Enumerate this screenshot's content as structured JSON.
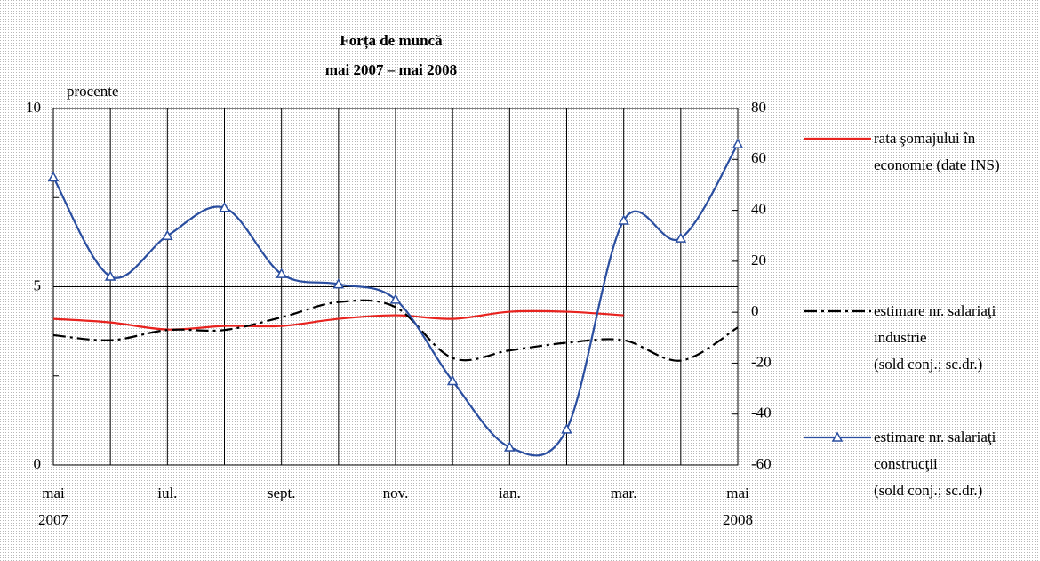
{
  "chart_data": {
    "type": "line",
    "title": "Forța de muncă",
    "subtitle": "mai 2007 – mai 2008",
    "y_label": "procente",
    "categories": [
      "mai\n2007",
      null,
      "iul.",
      null,
      "sept.",
      null,
      "nov.",
      null,
      "ian.",
      null,
      "mar.",
      null,
      "mai\n2008"
    ],
    "ylim": [
      0,
      10
    ],
    "yticks": [
      0,
      5,
      10
    ],
    "yminorticks": [
      2.5,
      7.5
    ],
    "y2lim": [
      -60,
      80
    ],
    "y2ticks": [
      -60,
      -40,
      -20,
      0,
      20,
      40,
      60,
      80
    ],
    "grid": true,
    "smooth": true,
    "series": [
      {
        "name": "rata şomajului în\neconomie (date INS)",
        "color": "#e8231f",
        "axis": "y",
        "style": "solid",
        "values": [
          4.1,
          4.0,
          3.8,
          3.9,
          3.9,
          4.1,
          4.2,
          4.1,
          4.3,
          4.3,
          4.2,
          null,
          null
        ]
      },
      {
        "name": "estimare nr. salariaţi\nindustrie\n(sold conj.; sc.dr.)",
        "color": "#000000",
        "axis": "y2",
        "style": "dashdot",
        "values": [
          -9,
          -11,
          -7,
          -7,
          -2,
          4,
          2,
          -18,
          -15,
          -12,
          -11,
          -19,
          -6
        ]
      },
      {
        "name": "estimare nr. salariaţi\nconstrucţii\n(sold conj.; sc.dr.)",
        "color": "#2a4ea0",
        "axis": "y2",
        "style": "solid",
        "marker": "triangle",
        "values": [
          53,
          14,
          30,
          41,
          15,
          11,
          5,
          -27,
          -53,
          -46,
          36,
          29,
          66
        ]
      }
    ]
  }
}
